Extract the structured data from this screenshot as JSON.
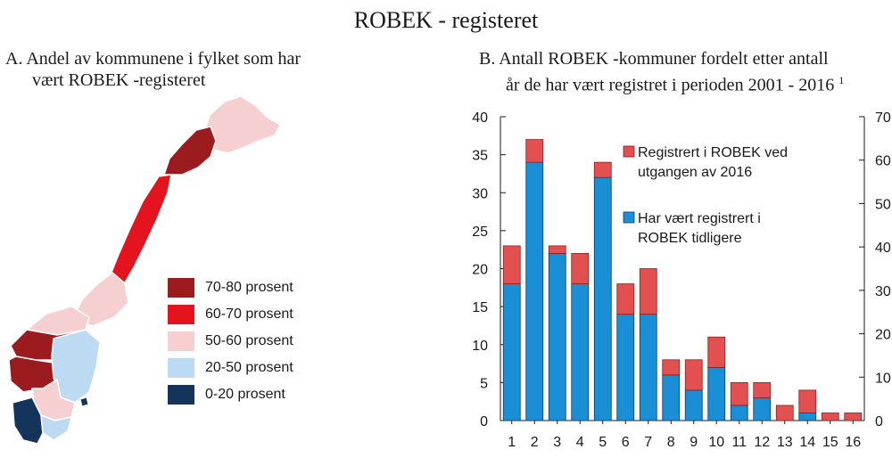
{
  "title": "ROBEK - registeret",
  "panel_a": {
    "title_line1": "A.  Andel  av kommunene i fylket som har",
    "title_line2": "vært ROBEK -registeret",
    "legend": [
      {
        "label": "70-80 prosent",
        "color": "#9b1b1f"
      },
      {
        "label": "60-70 prosent",
        "color": "#e3141d"
      },
      {
        "label": "50-60 prosent",
        "color": "#f6cfd0"
      },
      {
        "label": "20-50 prosent",
        "color": "#bcdaf2"
      },
      {
        "label": "0-20 prosent",
        "color": "#15345b"
      }
    ]
  },
  "panel_b": {
    "title_line1": "B.  Antall ROBEK  -kommuner fordelt etter antall",
    "title_line2": "år de har vært registret i perioden 2001 - 2016",
    "footnote_marker": "1"
  },
  "chart_data": {
    "type": "bar",
    "stacked": true,
    "categories": [
      "1",
      "2",
      "3",
      "4",
      "5",
      "6",
      "7",
      "8",
      "9",
      "10",
      "11",
      "12",
      "13",
      "14",
      "15",
      "16"
    ],
    "series": [
      {
        "name": "Har vært registrert i ROBEK tidligere",
        "color": "#1a8fd6",
        "values": [
          18,
          34,
          22,
          18,
          32,
          14,
          14,
          6,
          4,
          7,
          2,
          3,
          0,
          1,
          0,
          0
        ]
      },
      {
        "name": "Registrert i ROBEK ved utgangen av 2016",
        "color": "#e2504f",
        "values": [
          5,
          3,
          1,
          4,
          2,
          4,
          6,
          2,
          4,
          4,
          3,
          2,
          2,
          3,
          1,
          1
        ]
      }
    ],
    "left_axis": {
      "ylim": [
        0,
        40
      ],
      "ticks": [
        0,
        5,
        10,
        15,
        20,
        25,
        30,
        35,
        40
      ]
    },
    "right_axis": {
      "ylim": [
        0,
        70
      ],
      "ticks": [
        0,
        10,
        20,
        30,
        40,
        50,
        60,
        70
      ]
    },
    "legend_lines": [
      [
        "Registrert i ROBEK ved",
        "utgangen av 2016"
      ],
      [
        "Har vært registrert i",
        "ROBEK tidligere"
      ]
    ],
    "legend_position": "top-right",
    "grid": false
  }
}
